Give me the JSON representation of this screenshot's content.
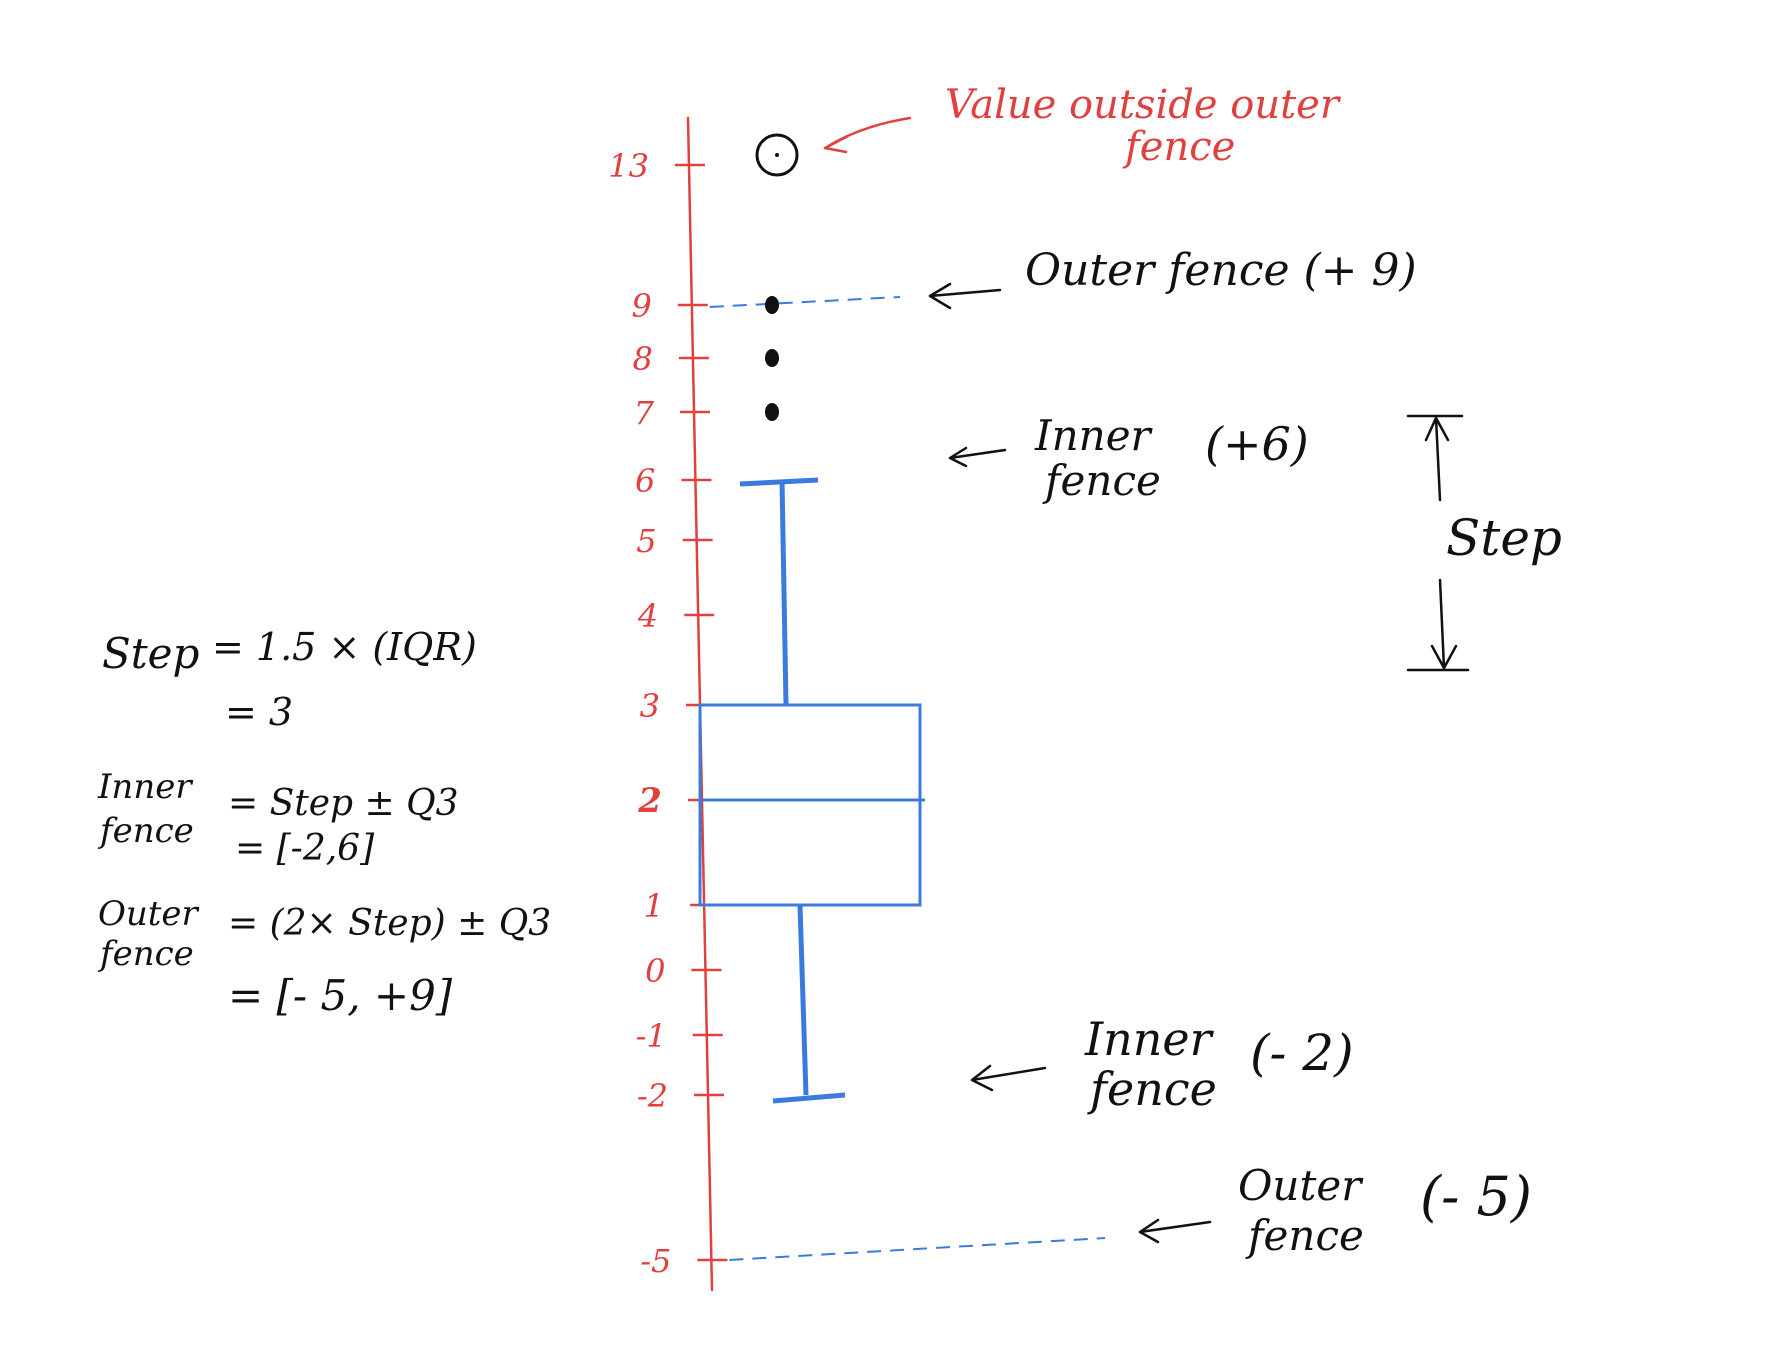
{
  "colors": {
    "axis": "#e0413f",
    "box": "#3b7be0",
    "ink": "#111111",
    "fence_line": "#3b7be0"
  },
  "axis": {
    "ticks": [
      {
        "value": 13,
        "label": "13"
      },
      {
        "value": 9,
        "label": "9"
      },
      {
        "value": 8,
        "label": "8"
      },
      {
        "value": 7,
        "label": "7"
      },
      {
        "value": 6,
        "label": "6"
      },
      {
        "value": 5,
        "label": "5"
      },
      {
        "value": 4,
        "label": "4"
      },
      {
        "value": 3,
        "label": "3"
      },
      {
        "value": 2,
        "label": "2"
      },
      {
        "value": 1,
        "label": "1"
      },
      {
        "value": 0,
        "label": "0"
      },
      {
        "value": -1,
        "label": "-1"
      },
      {
        "value": -2,
        "label": "-2"
      },
      {
        "value": -5,
        "label": "-5"
      }
    ]
  },
  "boxplot": {
    "q1": 1,
    "median": 2,
    "q3": 3,
    "whisker_low": -2,
    "whisker_high": 6,
    "mild_outliers": [
      7,
      8,
      9
    ],
    "extreme_outliers": [
      13
    ]
  },
  "annotations": {
    "extreme_note": "Value outside outer fence",
    "outer_upper": "Outer fence (+ 9)",
    "inner_upper_line1": "Inner",
    "inner_upper_line2": "fence",
    "inner_upper_value": "(+6)",
    "step_label": "Step",
    "inner_lower_line1": "Inner",
    "inner_lower_line2": "fence",
    "inner_lower_value": "(- 2)",
    "outer_lower_line1": "Outer",
    "outer_lower_line2": "fence",
    "outer_lower_value": "(- 5)"
  },
  "formulas": {
    "step_lhs": "Step",
    "step_rhs1": "= 1.5 × (IQR)",
    "step_rhs2": "= 3",
    "inner_lhs1": "Inner",
    "inner_lhs2": "fence",
    "inner_rhs1": "= Step ± Q3",
    "inner_rhs2": "= [-2,6]",
    "outer_lhs1": "Outer",
    "outer_lhs2": "fence",
    "outer_rhs1": "= (2× Step) ± Q3",
    "outer_rhs2": "= [- 5, +9]"
  }
}
